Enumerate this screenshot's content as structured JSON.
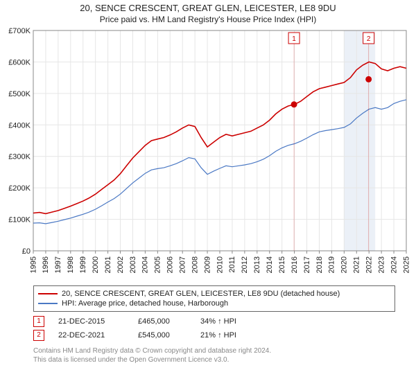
{
  "title": "20, SENCE CRESCENT, GREAT GLEN, LEICESTER, LE8 9DU",
  "subtitle": "Price paid vs. HM Land Registry's House Price Index (HPI)",
  "chart": {
    "type": "line",
    "x_start_year": 1995,
    "x_end_year": 2025,
    "x_tick_years": [
      1995,
      1996,
      1997,
      1998,
      1999,
      2000,
      2001,
      2002,
      2003,
      2004,
      2005,
      2006,
      2007,
      2008,
      2009,
      2010,
      2011,
      2012,
      2013,
      2014,
      2015,
      2016,
      2017,
      2018,
      2019,
      2020,
      2021,
      2022,
      2023,
      2024,
      2025
    ],
    "y_min": 0,
    "y_max": 700000,
    "y_tick_step": 100000,
    "y_tick_labels": [
      "£0",
      "£100K",
      "£200K",
      "£300K",
      "£400K",
      "£500K",
      "£600K",
      "£700K"
    ],
    "grid_color": "#e6e6e6",
    "axis_color": "#888888",
    "background_color": "#ffffff",
    "shade_color": "#dbe4f0",
    "series": [
      {
        "name": "20, SENCE CRESCENT, GREAT GLEN, LEICESTER, LE8 9DU (detached house)",
        "color": "#cc0000",
        "line_width": 1.6,
        "data": [
          [
            1995.0,
            120000
          ],
          [
            1995.5,
            122000
          ],
          [
            1996.0,
            118000
          ],
          [
            1996.5,
            123000
          ],
          [
            1997.0,
            128000
          ],
          [
            1997.5,
            135000
          ],
          [
            1998.0,
            142000
          ],
          [
            1998.5,
            150000
          ],
          [
            1999.0,
            158000
          ],
          [
            1999.5,
            168000
          ],
          [
            2000.0,
            180000
          ],
          [
            2000.5,
            195000
          ],
          [
            2001.0,
            210000
          ],
          [
            2001.5,
            225000
          ],
          [
            2002.0,
            245000
          ],
          [
            2002.5,
            270000
          ],
          [
            2003.0,
            295000
          ],
          [
            2003.5,
            315000
          ],
          [
            2004.0,
            335000
          ],
          [
            2004.5,
            350000
          ],
          [
            2005.0,
            355000
          ],
          [
            2005.5,
            360000
          ],
          [
            2006.0,
            368000
          ],
          [
            2006.5,
            378000
          ],
          [
            2007.0,
            390000
          ],
          [
            2007.5,
            400000
          ],
          [
            2008.0,
            395000
          ],
          [
            2008.5,
            360000
          ],
          [
            2009.0,
            330000
          ],
          [
            2009.5,
            345000
          ],
          [
            2010.0,
            360000
          ],
          [
            2010.5,
            370000
          ],
          [
            2011.0,
            365000
          ],
          [
            2011.5,
            370000
          ],
          [
            2012.0,
            375000
          ],
          [
            2012.5,
            380000
          ],
          [
            2013.0,
            390000
          ],
          [
            2013.5,
            400000
          ],
          [
            2014.0,
            415000
          ],
          [
            2014.5,
            435000
          ],
          [
            2015.0,
            450000
          ],
          [
            2015.5,
            460000
          ],
          [
            2016.0,
            465000
          ],
          [
            2016.5,
            475000
          ],
          [
            2017.0,
            490000
          ],
          [
            2017.5,
            505000
          ],
          [
            2018.0,
            515000
          ],
          [
            2018.5,
            520000
          ],
          [
            2019.0,
            525000
          ],
          [
            2019.5,
            530000
          ],
          [
            2020.0,
            535000
          ],
          [
            2020.5,
            550000
          ],
          [
            2021.0,
            575000
          ],
          [
            2021.5,
            590000
          ],
          [
            2022.0,
            600000
          ],
          [
            2022.5,
            595000
          ],
          [
            2023.0,
            578000
          ],
          [
            2023.5,
            572000
          ],
          [
            2024.0,
            580000
          ],
          [
            2024.5,
            585000
          ],
          [
            2025.0,
            580000
          ]
        ]
      },
      {
        "name": "HPI: Average price, detached house, Harborough",
        "color": "#4a78c4",
        "line_width": 1.2,
        "data": [
          [
            1995.0,
            88000
          ],
          [
            1995.5,
            89000
          ],
          [
            1996.0,
            86000
          ],
          [
            1996.5,
            90000
          ],
          [
            1997.0,
            94000
          ],
          [
            1997.5,
            99000
          ],
          [
            1998.0,
            104000
          ],
          [
            1998.5,
            110000
          ],
          [
            1999.0,
            116000
          ],
          [
            1999.5,
            123000
          ],
          [
            2000.0,
            132000
          ],
          [
            2000.5,
            143000
          ],
          [
            2001.0,
            155000
          ],
          [
            2001.5,
            166000
          ],
          [
            2002.0,
            180000
          ],
          [
            2002.5,
            198000
          ],
          [
            2003.0,
            216000
          ],
          [
            2003.5,
            231000
          ],
          [
            2004.0,
            246000
          ],
          [
            2004.5,
            257000
          ],
          [
            2005.0,
            261000
          ],
          [
            2005.5,
            264000
          ],
          [
            2006.0,
            270000
          ],
          [
            2006.5,
            277000
          ],
          [
            2007.0,
            286000
          ],
          [
            2007.5,
            296000
          ],
          [
            2008.0,
            292000
          ],
          [
            2008.5,
            264000
          ],
          [
            2009.0,
            243000
          ],
          [
            2009.5,
            253000
          ],
          [
            2010.0,
            262000
          ],
          [
            2010.5,
            270000
          ],
          [
            2011.0,
            267000
          ],
          [
            2011.5,
            270000
          ],
          [
            2012.0,
            273000
          ],
          [
            2012.5,
            277000
          ],
          [
            2013.0,
            283000
          ],
          [
            2013.5,
            291000
          ],
          [
            2014.0,
            302000
          ],
          [
            2014.5,
            316000
          ],
          [
            2015.0,
            327000
          ],
          [
            2015.5,
            335000
          ],
          [
            2016.0,
            340000
          ],
          [
            2016.5,
            348000
          ],
          [
            2017.0,
            358000
          ],
          [
            2017.5,
            369000
          ],
          [
            2018.0,
            378000
          ],
          [
            2018.5,
            382000
          ],
          [
            2019.0,
            385000
          ],
          [
            2019.5,
            388000
          ],
          [
            2020.0,
            392000
          ],
          [
            2020.5,
            403000
          ],
          [
            2021.0,
            422000
          ],
          [
            2021.5,
            437000
          ],
          [
            2022.0,
            450000
          ],
          [
            2022.5,
            455000
          ],
          [
            2023.0,
            450000
          ],
          [
            2023.5,
            455000
          ],
          [
            2024.0,
            468000
          ],
          [
            2024.5,
            475000
          ],
          [
            2025.0,
            480000
          ]
        ]
      }
    ],
    "sales_markers": [
      {
        "n": 1,
        "year": 2015.97,
        "price": 465000,
        "date_label": "21-DEC-2015",
        "pct_label": "34% ↑ HPI"
      },
      {
        "n": 2,
        "year": 2021.97,
        "price": 545000,
        "date_label": "22-DEC-2021",
        "pct_label": "21% ↑ HPI"
      }
    ],
    "flag_top_offset": 12
  },
  "legend": {
    "series1": "20, SENCE CRESCENT, GREAT GLEN, LEICESTER, LE8 9DU (detached house)",
    "series2": "HPI: Average price, detached house, Harborough"
  },
  "footer": {
    "line1": "Contains HM Land Registry data © Crown copyright and database right 2024.",
    "line2": "This data is licensed under the Open Government Licence v3.0."
  }
}
